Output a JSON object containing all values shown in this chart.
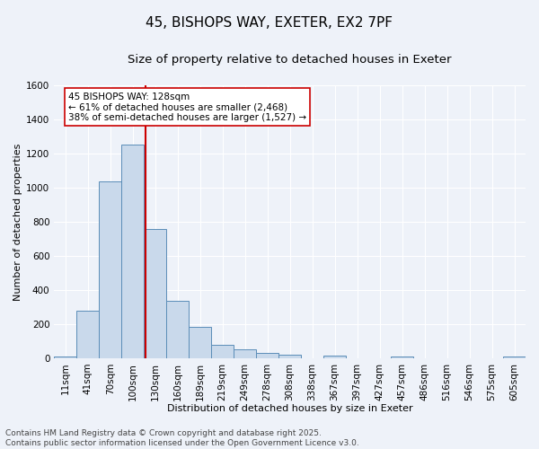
{
  "title1": "45, BISHOPS WAY, EXETER, EX2 7PF",
  "title2": "Size of property relative to detached houses in Exeter",
  "xlabel": "Distribution of detached houses by size in Exeter",
  "ylabel": "Number of detached properties",
  "bar_labels": [
    "11sqm",
    "41sqm",
    "70sqm",
    "100sqm",
    "130sqm",
    "160sqm",
    "189sqm",
    "219sqm",
    "249sqm",
    "278sqm",
    "308sqm",
    "338sqm",
    "367sqm",
    "397sqm",
    "427sqm",
    "457sqm",
    "486sqm",
    "516sqm",
    "546sqm",
    "575sqm",
    "605sqm"
  ],
  "bar_values": [
    10,
    280,
    1035,
    1250,
    755,
    335,
    185,
    80,
    50,
    30,
    20,
    0,
    15,
    0,
    0,
    12,
    0,
    0,
    0,
    0,
    12
  ],
  "bar_color": "#c9d9eb",
  "bar_edge_color": "#5b8db8",
  "background_color": "#eef2f9",
  "grid_color": "#ffffff",
  "vline_color": "#cc0000",
  "annotation_text": "45 BISHOPS WAY: 128sqm\n← 61% of detached houses are smaller (2,468)\n38% of semi-detached houses are larger (1,527) →",
  "annotation_box_color": "#ffffff",
  "annotation_box_edge": "#cc0000",
  "ylim": [
    0,
    1600
  ],
  "yticks": [
    0,
    200,
    400,
    600,
    800,
    1000,
    1200,
    1400,
    1600
  ],
  "footer_text": "Contains HM Land Registry data © Crown copyright and database right 2025.\nContains public sector information licensed under the Open Government Licence v3.0.",
  "title_fontsize": 11,
  "subtitle_fontsize": 9.5,
  "axis_label_fontsize": 8,
  "tick_fontsize": 7.5,
  "annotation_fontsize": 7.5,
  "footer_fontsize": 6.5
}
